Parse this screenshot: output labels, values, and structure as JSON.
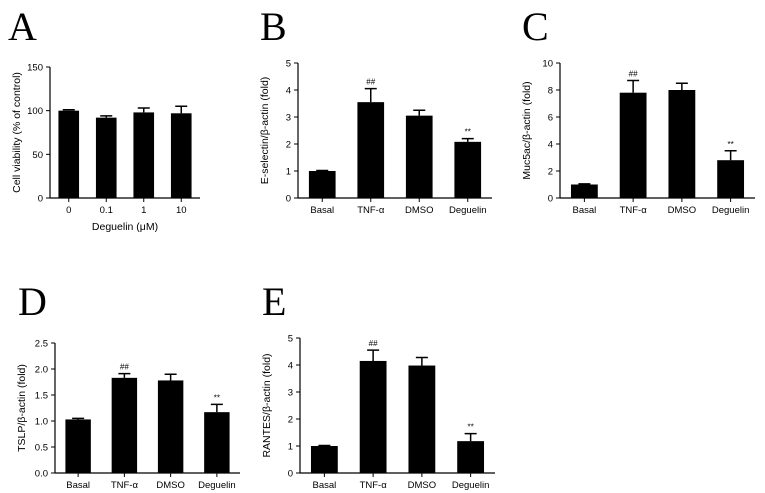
{
  "chart_data": [
    {
      "type": "bar",
      "panel": "A",
      "xlabel": "Deguelin (μM)",
      "ylabel": "Cell viability (% of control)",
      "categories": [
        "0",
        "0.1",
        "1",
        "10"
      ],
      "values": [
        100,
        92,
        98,
        97
      ],
      "errors": [
        1,
        2,
        5,
        8
      ],
      "bar_labels": [
        null,
        null,
        null,
        null
      ],
      "color": "#000000",
      "ylim": [
        0,
        150
      ],
      "yticks": [
        0,
        50,
        100,
        150
      ]
    },
    {
      "type": "bar",
      "panel": "B",
      "ylabel": "E-selectin/β-actin (fold)",
      "categories": [
        "Basal",
        "TNF-α",
        "DMSO",
        "Deguelin"
      ],
      "values": [
        1.0,
        3.55,
        3.05,
        2.08
      ],
      "errors": [
        0.02,
        0.5,
        0.2,
        0.12
      ],
      "bar_labels": [
        null,
        "##",
        null,
        "**"
      ],
      "color": "#000000",
      "ylim": [
        0,
        5
      ],
      "yticks": [
        0,
        1,
        2,
        3,
        4,
        5
      ]
    },
    {
      "type": "bar",
      "panel": "C",
      "ylabel": "Muc5ac/β-actin (fold)",
      "categories": [
        "Basal",
        "TNF-α",
        "DMSO",
        "Deguelin"
      ],
      "values": [
        1.0,
        7.8,
        8.0,
        2.8
      ],
      "errors": [
        0.05,
        0.9,
        0.5,
        0.7
      ],
      "bar_labels": [
        null,
        "##",
        null,
        "**"
      ],
      "color": "#000000",
      "ylim": [
        0,
        10
      ],
      "yticks": [
        0,
        2,
        4,
        6,
        8,
        10
      ]
    },
    {
      "type": "bar",
      "panel": "D",
      "ylabel": "TSLP/β-actin (fold)",
      "categories": [
        "Basal",
        "TNF-α",
        "DMSO",
        "Deguelin"
      ],
      "values": [
        1.03,
        1.83,
        1.78,
        1.17
      ],
      "errors": [
        0.02,
        0.08,
        0.12,
        0.15
      ],
      "bar_labels": [
        null,
        "##",
        null,
        "**"
      ],
      "color": "#000000",
      "ylim": [
        0,
        2.5
      ],
      "yticks": [
        {
          "value": 0,
          "label": "0.0"
        },
        0.5,
        {
          "value": 1,
          "label": "1.0"
        },
        1.5,
        {
          "value": 2,
          "label": "2.0"
        },
        2.5
      ]
    },
    {
      "type": "bar",
      "panel": "E",
      "ylabel": "RANTES/β-actin (fold)",
      "categories": [
        "Basal",
        "TNF-α",
        "DMSO",
        "Deguelin"
      ],
      "values": [
        1.0,
        4.15,
        3.98,
        1.18
      ],
      "errors": [
        0.02,
        0.4,
        0.3,
        0.28
      ],
      "bar_labels": [
        null,
        "##",
        null,
        "**"
      ],
      "color": "#000000",
      "ylim": [
        0,
        5
      ],
      "yticks": [
        0,
        1,
        2,
        3,
        4,
        5
      ]
    }
  ]
}
